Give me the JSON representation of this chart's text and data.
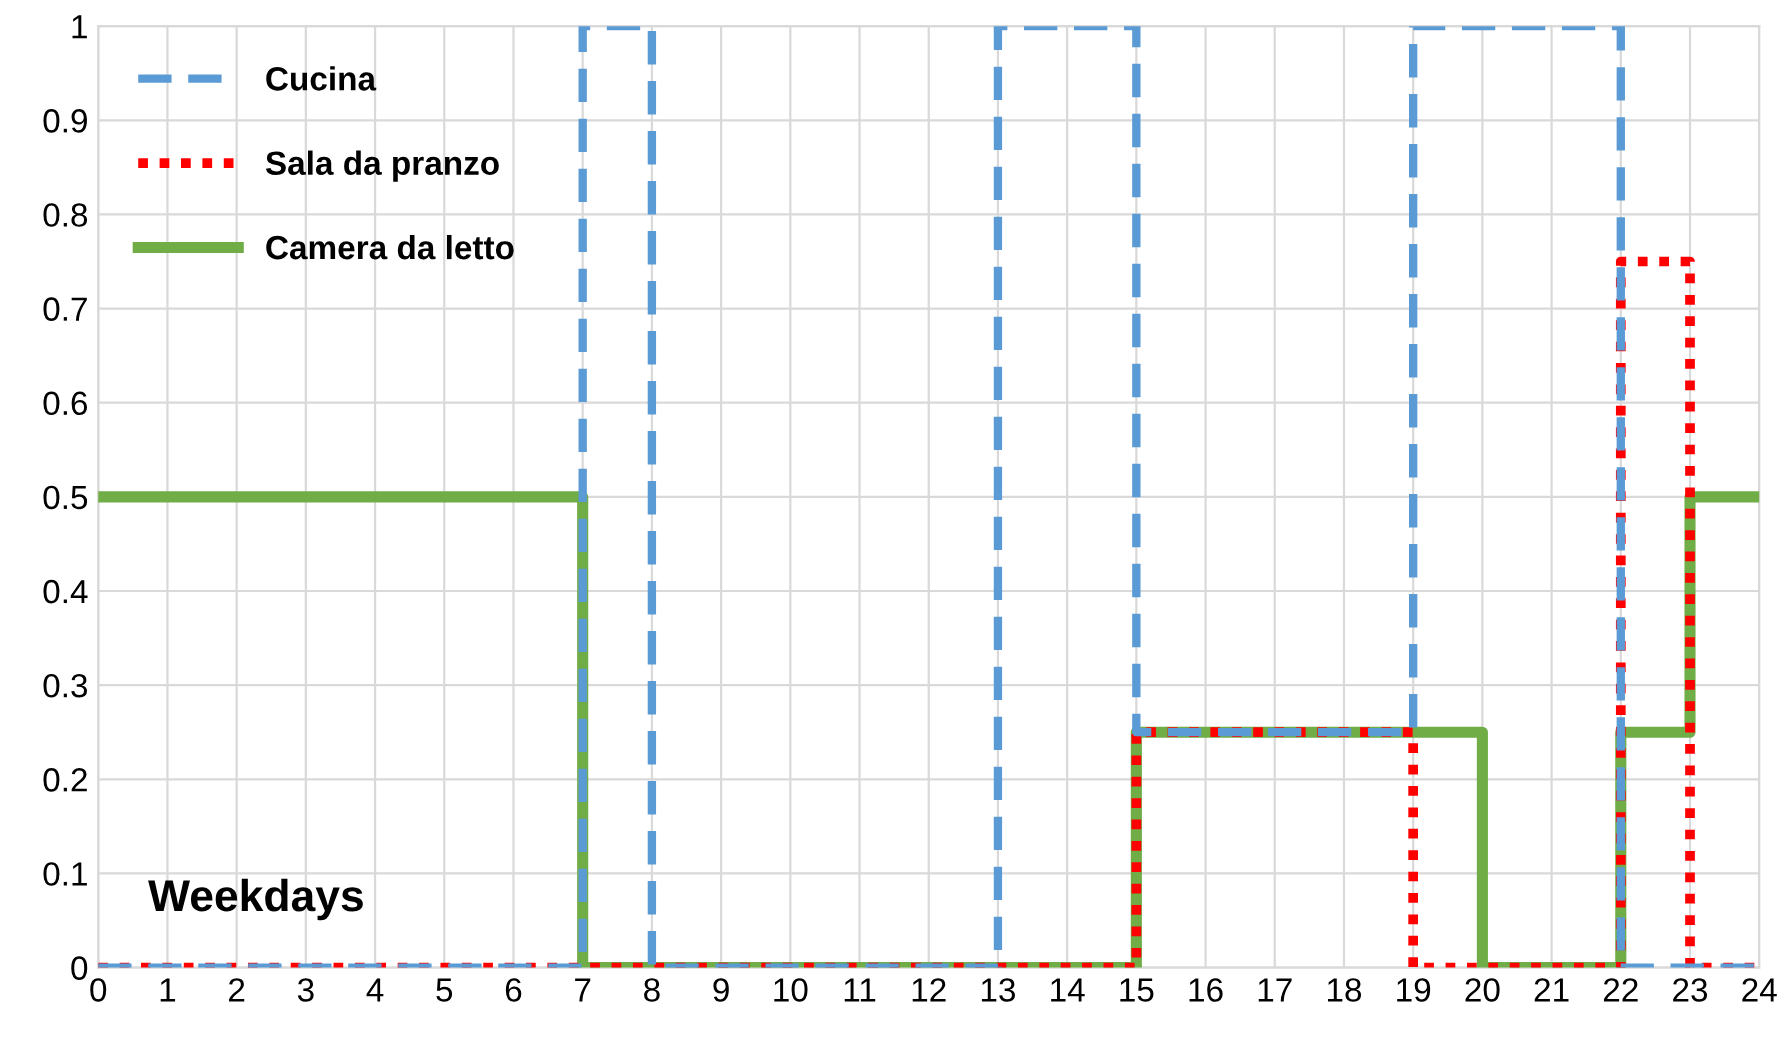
{
  "chart_data": {
    "type": "step",
    "annotations": [
      "Weekdays"
    ],
    "xlim": [
      0,
      24
    ],
    "xticks": [
      0,
      1,
      2,
      3,
      4,
      5,
      6,
      7,
      8,
      9,
      10,
      11,
      12,
      13,
      14,
      15,
      16,
      17,
      18,
      19,
      20,
      21,
      22,
      23,
      24
    ],
    "ylim": [
      0,
      1
    ],
    "yticks": [
      0,
      0.1,
      0.2,
      0.3,
      0.4,
      0.5,
      0.6,
      0.7,
      0.8,
      0.9,
      1
    ],
    "grid": true,
    "legend": "top left",
    "marker": "none",
    "series": [
      {
        "name": "Cucina",
        "color": "#5b9bd5",
        "line_style": "dashed",
        "x": [
          0,
          7,
          8,
          13,
          15,
          19,
          22,
          24
        ],
        "values": [
          0,
          1,
          0,
          1,
          0.25,
          1,
          0,
          0
        ]
      },
      {
        "name": "Sala da pranzo",
        "color": "#ff0000",
        "line_style": "dotted",
        "x": [
          0,
          15,
          19,
          22,
          23,
          24
        ],
        "values": [
          0,
          0.25,
          0,
          0.75,
          0,
          0
        ]
      },
      {
        "name": "Camera da letto",
        "color": "#70ad47",
        "line_style": "solid",
        "x": [
          0,
          7,
          15,
          20,
          22,
          23,
          24
        ],
        "values": [
          0.5,
          0,
          0.25,
          0,
          0.25,
          0.5,
          0.5
        ]
      }
    ]
  }
}
